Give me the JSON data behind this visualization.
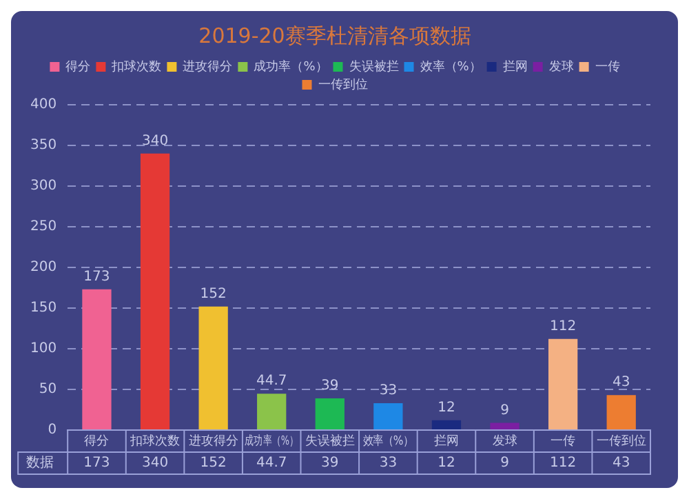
{
  "chart_data": {
    "type": "bar",
    "title": "2019-20赛季杜清清各项数据",
    "categories": [
      "得分",
      "扣球次数",
      "进攻得分",
      "成功率（%）",
      "失误被拦",
      "效率（%）",
      "拦网",
      "发球",
      "一传",
      "一传到位"
    ],
    "series": [
      {
        "name": "得分",
        "color": "#f06292",
        "values": [
          173,
          null,
          null,
          null,
          null,
          null,
          null,
          null,
          null,
          null
        ]
      },
      {
        "name": "扣球次数",
        "color": "#e53935",
        "values": [
          null,
          340,
          null,
          null,
          null,
          null,
          null,
          null,
          null,
          null
        ]
      },
      {
        "name": "进攻得分",
        "color": "#f0c030",
        "values": [
          null,
          null,
          152,
          null,
          null,
          null,
          null,
          null,
          null,
          null
        ]
      },
      {
        "name": "成功率（%）",
        "color": "#8bc34a",
        "values": [
          null,
          null,
          null,
          44.7,
          null,
          null,
          null,
          null,
          null,
          null
        ]
      },
      {
        "name": "失误被拦",
        "color": "#1db954",
        "values": [
          null,
          null,
          null,
          null,
          39,
          null,
          null,
          null,
          null,
          null
        ]
      },
      {
        "name": "效率（%）",
        "color": "#1e88e5",
        "values": [
          null,
          null,
          null,
          null,
          null,
          33,
          null,
          null,
          null,
          null
        ]
      },
      {
        "name": "拦网",
        "color": "#1a2a80",
        "values": [
          null,
          null,
          null,
          null,
          null,
          null,
          12,
          null,
          null,
          null
        ]
      },
      {
        "name": "发球",
        "color": "#7b1fa2",
        "values": [
          null,
          null,
          null,
          null,
          null,
          null,
          null,
          9,
          null,
          null
        ]
      },
      {
        "name": "一传",
        "color": "#f4b183",
        "values": [
          null,
          null,
          null,
          null,
          null,
          null,
          null,
          null,
          112,
          null
        ]
      },
      {
        "name": "一传到位",
        "color": "#ed7d31",
        "values": [
          null,
          null,
          null,
          null,
          null,
          null,
          null,
          null,
          null,
          43
        ]
      }
    ],
    "annotations": [
      "数据",
      "173",
      "340",
      "152",
      "44.7",
      "39",
      "33",
      "12",
      "9",
      "112",
      "43"
    ],
    "ylim": [
      0,
      400
    ],
    "yticks": [
      0,
      50,
      100,
      150,
      200,
      250,
      300,
      350,
      400
    ],
    "grid": "y",
    "legend": "top",
    "data_labels": true
  }
}
